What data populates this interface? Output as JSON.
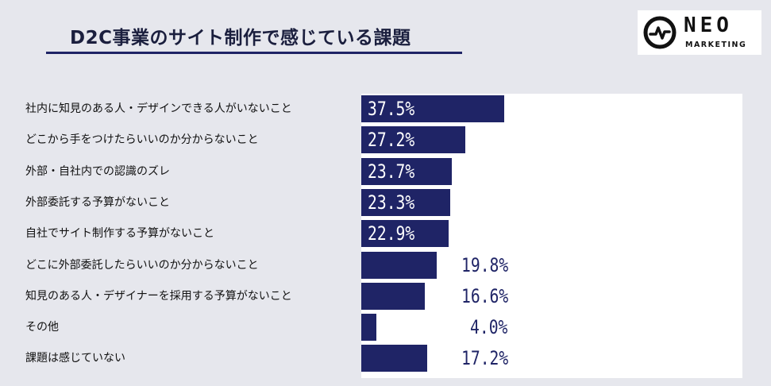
{
  "title": "D2C事業のサイト制作で感じている課題",
  "logo": {
    "word": "NEO",
    "sub": "MARKETING"
  },
  "colors": {
    "bar": "#1f2466",
    "background": "#e6e7ed",
    "plot_background": "#ffffff"
  },
  "chart_data": {
    "type": "bar",
    "orientation": "horizontal",
    "title": "D2C事業のサイト制作で感じている課題",
    "xlabel": "",
    "ylabel": "",
    "unit": "%",
    "xlim": [
      0,
      100
    ],
    "grid": false,
    "categories": [
      "社内に知見のある人・デザインできる人がいないこと",
      "どこから手をつけたらいいのか分からないこと",
      "外部・自社内での認識のズレ",
      "外部委託する予算がないこと",
      "自社でサイト制作する予算がないこと",
      "どこに外部委託したらいいのか分からないこと",
      "知見のある人・デザイナーを採用する予算がないこと",
      "その他",
      "課題は感じていない"
    ],
    "values": [
      37.5,
      27.2,
      23.7,
      23.3,
      22.9,
      19.8,
      16.6,
      4.0,
      17.2
    ],
    "labels": [
      "37.5%",
      "27.2%",
      "23.7%",
      "23.3%",
      "22.9%",
      "19.8%",
      "16.6%",
      "4.0%",
      "17.2%"
    ]
  }
}
